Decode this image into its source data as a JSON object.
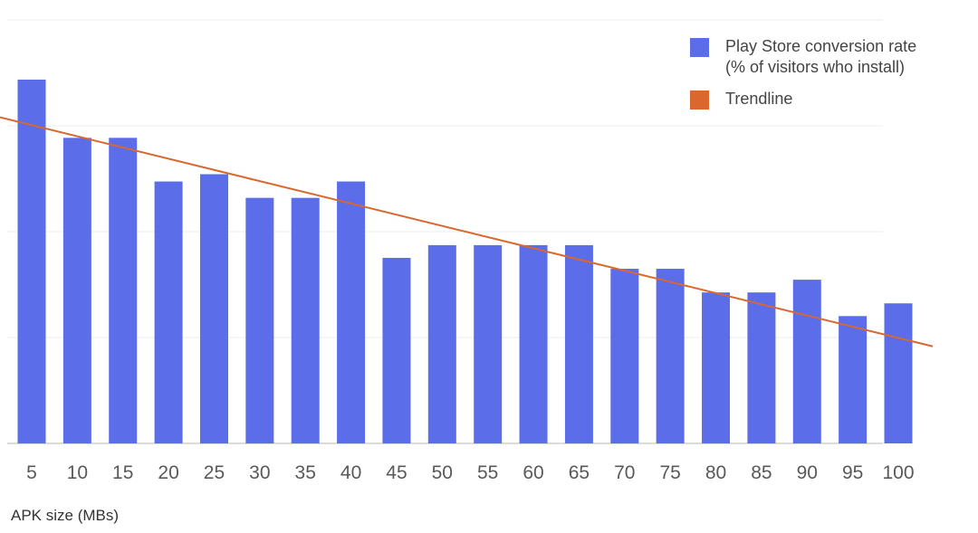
{
  "chart_data": {
    "type": "bar",
    "categories": [
      "5",
      "10",
      "15",
      "20",
      "25",
      "30",
      "35",
      "40",
      "45",
      "50",
      "55",
      "60",
      "65",
      "70",
      "75",
      "80",
      "85",
      "90",
      "95",
      "100"
    ],
    "series": [
      {
        "name": "Play Store conversion rate\n(% of visitors who install)",
        "values": [
          100,
          84,
          84,
          72,
          74,
          67.5,
          67.5,
          72,
          51,
          54.5,
          54.5,
          54.5,
          54.5,
          48,
          48,
          41.5,
          41.5,
          45,
          35,
          38.5
        ],
        "color": "#5b6de8"
      },
      {
        "name": "Trendline",
        "type": "line",
        "start": 87.5,
        "end": 29,
        "color": "#d9672e"
      }
    ],
    "xlabel": "APK size (MBs)",
    "ylabel": "",
    "ylim": [
      0,
      115
    ],
    "grid": true,
    "gridlines": 4,
    "legend_position": "top-right"
  }
}
